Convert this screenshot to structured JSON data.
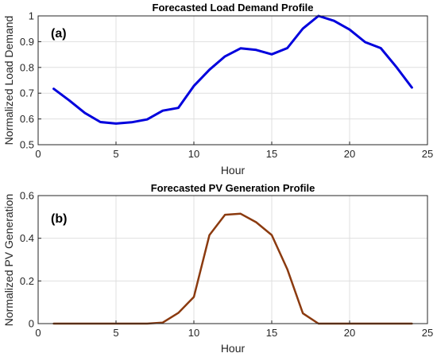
{
  "chart_data": [
    {
      "type": "line",
      "title": "Forecasted Load Demand Profile",
      "panel_label": "(a)",
      "xlabel": "Hour",
      "ylabel": "Normalized Load Demand",
      "xlim": [
        0,
        25
      ],
      "ylim": [
        0.5,
        1
      ],
      "xticks": [
        0,
        5,
        10,
        15,
        20,
        25
      ],
      "yticks": [
        0.5,
        0.6,
        0.7,
        0.8,
        0.9,
        1
      ],
      "ytick_labels": [
        "0.5",
        "0.6",
        "0.7",
        "0.8",
        "0.9",
        "1"
      ],
      "grid": true,
      "series": [
        {
          "color": "#0000dd",
          "x": [
            1,
            2,
            3,
            4,
            5,
            6,
            7,
            8,
            9,
            10,
            11,
            12,
            13,
            14,
            15,
            16,
            17,
            18,
            19,
            20,
            21,
            22,
            23,
            24
          ],
          "values": [
            0.717,
            0.672,
            0.623,
            0.588,
            0.582,
            0.587,
            0.598,
            0.632,
            0.643,
            0.728,
            0.791,
            0.843,
            0.874,
            0.868,
            0.851,
            0.875,
            0.951,
            1.0,
            0.981,
            0.947,
            0.898,
            0.875,
            0.802,
            0.722
          ]
        }
      ]
    },
    {
      "type": "line",
      "title": "Forecasted PV Generation Profile",
      "panel_label": "(b)",
      "xlabel": "Hour",
      "ylabel": "Normalized PV Generation",
      "xlim": [
        0,
        25
      ],
      "ylim": [
        0,
        0.6
      ],
      "xticks": [
        0,
        5,
        10,
        15,
        20,
        25
      ],
      "yticks": [
        0,
        0.2,
        0.4,
        0.6
      ],
      "ytick_labels": [
        "0",
        "0.2",
        "0.4",
        "0.6"
      ],
      "grid": true,
      "series": [
        {
          "color": "#8b3a0f",
          "x": [
            1,
            2,
            3,
            4,
            5,
            6,
            7,
            8,
            9,
            10,
            11,
            12,
            13,
            14,
            15,
            16,
            17,
            18,
            19,
            20,
            21,
            22,
            23,
            24
          ],
          "values": [
            0,
            0,
            0,
            0,
            0,
            0,
            0,
            0.005,
            0.05,
            0.125,
            0.415,
            0.51,
            0.515,
            0.475,
            0.415,
            0.255,
            0.048,
            0,
            0,
            0,
            0,
            0,
            0,
            0
          ]
        }
      ]
    }
  ]
}
